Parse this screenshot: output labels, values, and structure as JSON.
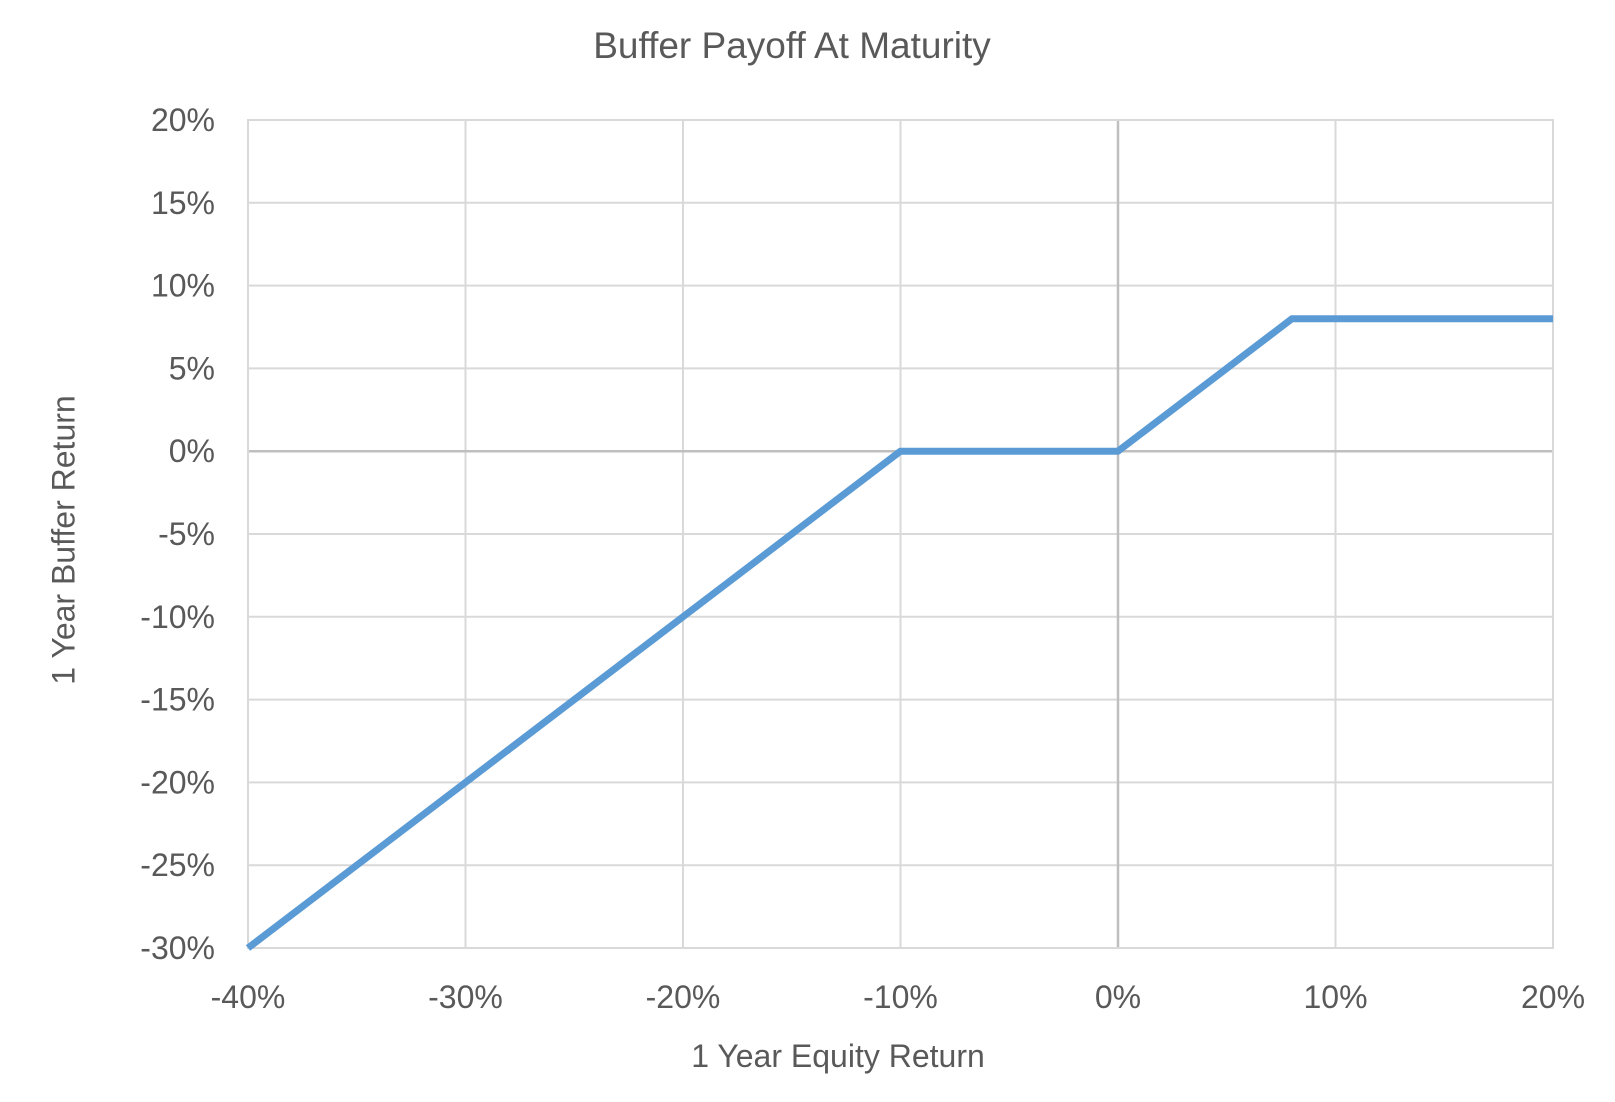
{
  "chart_data": {
    "type": "line",
    "title": "Buffer Payoff At Maturity",
    "xlabel": "1 Year Equity Return",
    "ylabel": "1 Year Buffer Return",
    "xlim": [
      -40,
      20
    ],
    "ylim": [
      -30,
      20
    ],
    "x_ticks": [
      -40,
      -30,
      -20,
      -10,
      0,
      10,
      20
    ],
    "x_tick_labels": [
      "-40%",
      "-30%",
      "-20%",
      "-10%",
      "0%",
      "10%",
      "20%"
    ],
    "y_ticks": [
      20,
      15,
      10,
      5,
      0,
      -5,
      -10,
      -15,
      -20,
      -25,
      -30
    ],
    "y_tick_labels": [
      "20%",
      "15%",
      "10%",
      "5%",
      "0%",
      "-5%",
      "-10%",
      "-15%",
      "-20%",
      "-25%",
      "-30%"
    ],
    "grid": true,
    "legend": "none",
    "series": [
      {
        "x": [
          -40,
          -10,
          0,
          8,
          20
        ],
        "y": [
          -30,
          0,
          0,
          8,
          8
        ],
        "color": "#5B9BD5"
      }
    ],
    "colors": {
      "line": "#5B9BD5",
      "gridline": "#D9D9D9",
      "zero_line": "#BFBFBF",
      "text": "#595959",
      "background": "#FFFFFF"
    }
  }
}
